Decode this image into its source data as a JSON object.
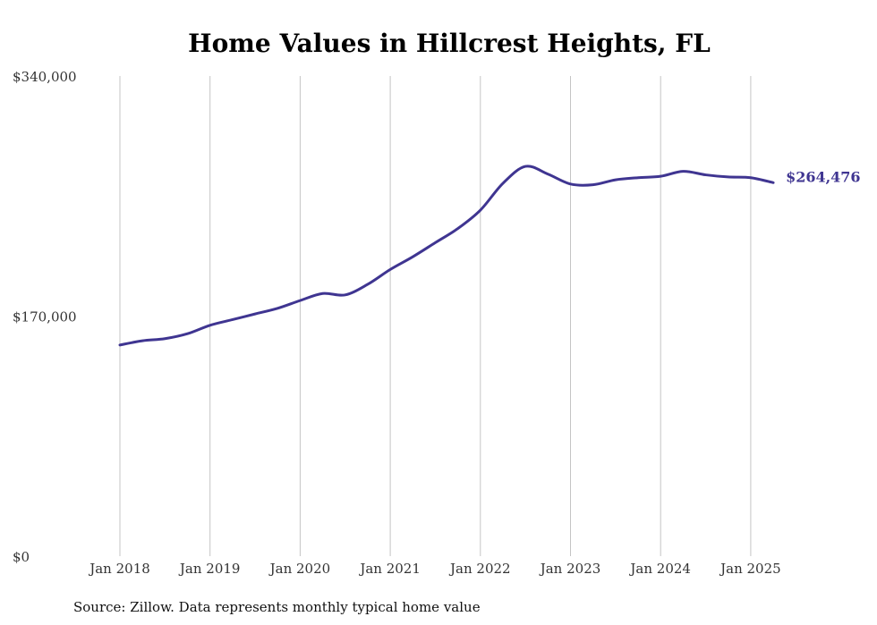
{
  "chart_data": {
    "type": "line",
    "title": "Home Values in Hillcrest Heights, FL",
    "source": "Source: Zillow. Data represents monthly typical home value",
    "xlabel": "",
    "ylabel": "",
    "ylim": [
      0,
      340000
    ],
    "y_ticks": [
      0,
      170000,
      340000
    ],
    "y_tick_labels": [
      "$0",
      "$170,000",
      "$340,000"
    ],
    "x_ticks": [
      "2018-01",
      "2019-01",
      "2020-01",
      "2021-01",
      "2022-01",
      "2023-01",
      "2024-01",
      "2025-01"
    ],
    "x_tick_labels": [
      "Jan 2018",
      "Jan 2019",
      "Jan 2020",
      "Jan 2021",
      "Jan 2022",
      "Jan 2023",
      "Jan 2024",
      "Jan 2025"
    ],
    "grid": "vertical",
    "line_color": "#3f3591",
    "end_label": "$264,476",
    "series": [
      {
        "name": "",
        "points": [
          [
            "2018-01",
            149500
          ],
          [
            "2018-04",
            152500
          ],
          [
            "2018-07",
            154000
          ],
          [
            "2018-10",
            157500
          ],
          [
            "2019-01",
            163500
          ],
          [
            "2019-04",
            167500
          ],
          [
            "2019-07",
            171500
          ],
          [
            "2019-10",
            175500
          ],
          [
            "2020-01",
            181000
          ],
          [
            "2020-04",
            186000
          ],
          [
            "2020-07",
            185000
          ],
          [
            "2020-10",
            192500
          ],
          [
            "2021-01",
            203000
          ],
          [
            "2021-04",
            212000
          ],
          [
            "2021-07",
            222000
          ],
          [
            "2021-10",
            232000
          ],
          [
            "2022-01",
            245000
          ],
          [
            "2022-04",
            264000
          ],
          [
            "2022-07",
            276000
          ],
          [
            "2022-10",
            270500
          ],
          [
            "2023-01",
            263500
          ],
          [
            "2023-04",
            263000
          ],
          [
            "2023-07",
            266500
          ],
          [
            "2023-10",
            268000
          ],
          [
            "2024-01",
            269000
          ],
          [
            "2024-04",
            272500
          ],
          [
            "2024-07",
            270000
          ],
          [
            "2024-10",
            268500
          ],
          [
            "2025-01",
            268000
          ],
          [
            "2025-04",
            264476
          ]
        ]
      }
    ]
  }
}
